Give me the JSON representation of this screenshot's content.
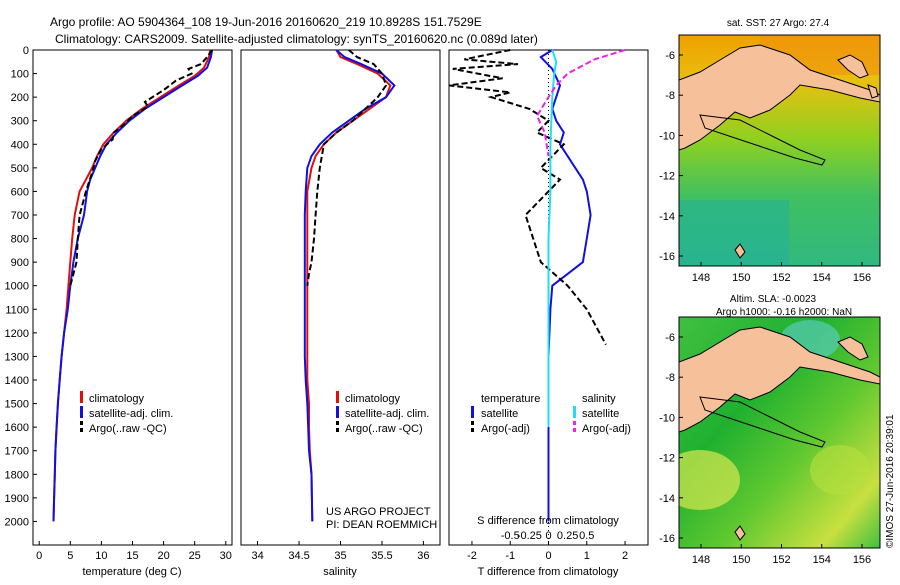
{
  "header": {
    "line1": "Argo profile: AO 5904364_108 19-Jun-2016 20160620_219 10.8928S 151.7529E",
    "line2": "Climatology: CARS2009. Satellite-adjusted climatology: synTS_20160620.nc (0.089d later)"
  },
  "colors": {
    "climatology": "#e01010",
    "satellite": "#1010e0",
    "argo": "#000000",
    "sat_salinity": "#20e0f0",
    "argo_salinity": "#f020f0",
    "land": "#f5c09a"
  },
  "chart_data": [
    {
      "type": "line",
      "id": "temperature",
      "xlabel": "temperature (deg C)",
      "xlim": [
        -1,
        31
      ],
      "xticks": [
        0,
        5,
        10,
        15,
        20,
        25,
        30
      ],
      "ylim": [
        2100,
        0
      ],
      "yticks": [
        0,
        100,
        200,
        300,
        400,
        500,
        600,
        700,
        800,
        900,
        1000,
        1100,
        1200,
        1300,
        1400,
        1500,
        1600,
        1700,
        1800,
        1900,
        2000
      ],
      "legend": [
        "climatology",
        "satellite-adj. clim.",
        "Argo(..raw -QC)"
      ],
      "series": [
        {
          "name": "climatology",
          "x": [
            27.5,
            27.3,
            26.5,
            25,
            22.5,
            19.5,
            16.5,
            14,
            12,
            10.3,
            9.3,
            8.5,
            7.5,
            6.5,
            5.7,
            5.3,
            5,
            4.7,
            4.4,
            4,
            3.6,
            3.3,
            3,
            2.8,
            2.6,
            2.5,
            2.4,
            2.3
          ],
          "y": [
            0,
            30,
            75,
            110,
            150,
            200,
            250,
            300,
            350,
            400,
            450,
            500,
            550,
            600,
            700,
            800,
            900,
            1000,
            1100,
            1200,
            1300,
            1400,
            1500,
            1600,
            1700,
            1800,
            1900,
            2000
          ]
        },
        {
          "name": "satellite-adj. clim.",
          "x": [
            27.8,
            27.6,
            27,
            25.5,
            23,
            20,
            17,
            14.5,
            12.5,
            10.8,
            9.8,
            9,
            8.2,
            7.7,
            7.2,
            6.2,
            5.5,
            5,
            4.6,
            4,
            3.6,
            3.3,
            3,
            2.8,
            2.6,
            2.5,
            2.4,
            2.3
          ],
          "y": [
            0,
            30,
            75,
            110,
            150,
            200,
            250,
            300,
            350,
            400,
            450,
            500,
            550,
            600,
            700,
            800,
            900,
            1000,
            1100,
            1200,
            1300,
            1400,
            1500,
            1600,
            1700,
            1800,
            1900,
            2000
          ]
        },
        {
          "name": "Argo(..raw -QC)",
          "x": [
            27.8,
            27,
            26,
            24,
            24.5,
            22,
            20,
            17,
            17.5,
            15,
            13.5,
            12,
            11.8,
            10,
            9,
            8.5,
            7.5,
            7,
            6.5,
            6.2,
            6,
            5.5,
            5
          ],
          "y": [
            0,
            30,
            60,
            80,
            100,
            130,
            170,
            220,
            240,
            280,
            320,
            350,
            380,
            420,
            470,
            520,
            600,
            650,
            700,
            800,
            900,
            950,
            1000
          ]
        }
      ]
    },
    {
      "type": "line",
      "id": "salinity",
      "xlabel": "salinity",
      "xlim": [
        33.8,
        36.2
      ],
      "xticks": [
        34,
        34.5,
        35,
        35.5,
        36
      ],
      "ylim": [
        2100,
        0
      ],
      "legend": [
        "climatology",
        "satellite-adj. clim.",
        "Argo(..raw -QC)"
      ],
      "series": [
        {
          "name": "climatology",
          "x": [
            34.95,
            35,
            35.2,
            35.45,
            35.6,
            35.55,
            35.35,
            35.15,
            34.95,
            34.8,
            34.7,
            34.65,
            34.6,
            34.6,
            34.6,
            34.6,
            34.6,
            34.6,
            34.6,
            34.6,
            34.6,
            34.62,
            34.62,
            34.63,
            34.65,
            34.66
          ],
          "y": [
            0,
            30,
            60,
            100,
            150,
            200,
            250,
            300,
            350,
            400,
            450,
            500,
            600,
            700,
            800,
            900,
            1000,
            1100,
            1200,
            1300,
            1400,
            1500,
            1600,
            1700,
            1800,
            2000
          ]
        },
        {
          "name": "satellite-adj. clim.",
          "x": [
            34.95,
            35.05,
            35.25,
            35.5,
            35.65,
            35.55,
            35.3,
            35.1,
            34.9,
            34.75,
            34.65,
            34.6,
            34.58,
            34.57,
            34.57,
            34.57,
            34.57,
            34.57,
            34.57,
            34.57,
            34.58,
            34.6,
            34.61,
            34.62,
            34.65,
            34.66
          ],
          "y": [
            0,
            30,
            60,
            100,
            150,
            200,
            250,
            300,
            350,
            400,
            450,
            500,
            600,
            700,
            800,
            900,
            1000,
            1100,
            1200,
            1300,
            1400,
            1500,
            1600,
            1700,
            1800,
            2000
          ]
        },
        {
          "name": "Argo(..raw -QC)",
          "x": [
            35.1,
            35.2,
            35.4,
            35.5,
            35.55,
            35.45,
            35.3,
            35.15,
            34.95,
            34.8,
            34.75,
            34.72,
            34.7,
            34.68,
            34.65,
            34.62,
            34.6
          ],
          "y": [
            0,
            30,
            60,
            100,
            150,
            200,
            250,
            300,
            350,
            400,
            500,
            600,
            700,
            800,
            900,
            950,
            1000
          ]
        }
      ]
    },
    {
      "type": "line",
      "id": "difference",
      "xlabel": "T difference from climatology",
      "xlabel_top": "S difference from climatology",
      "xlim": [
        -2.6,
        2.6
      ],
      "xticks_T": [
        -2,
        -1,
        0,
        1,
        2
      ],
      "xticks_S": [
        "-0.5",
        "-0.25",
        "0",
        "0.25",
        "0.5"
      ],
      "ylim": [
        2100,
        0
      ],
      "legend": {
        "temperature_header": "temperature",
        "salinity_header": "salinity",
        "items": [
          "satellite",
          "Argo(-adj)",
          "satellite",
          "Argo(-adj)"
        ]
      },
      "series": [
        {
          "name": "T satellite",
          "x": [
            0.1,
            -0.2,
            0.1,
            0.3,
            0.2,
            0.1,
            0.2,
            0.4,
            0.3,
            0.5,
            0.7,
            0.9,
            1.0,
            1.1,
            1.0,
            0.9,
            0.5,
            0.1,
            0.05,
            0,
            0,
            0,
            0,
            0
          ],
          "y": [
            0,
            30,
            80,
            150,
            200,
            250,
            300,
            350,
            400,
            450,
            500,
            550,
            600,
            700,
            800,
            900,
            950,
            1000,
            1100,
            1300,
            1500,
            1700,
            1900,
            2000
          ]
        },
        {
          "name": "T Argo(-adj)",
          "x": [
            -1.0,
            -2.2,
            -0.8,
            -2.5,
            -1.2,
            -2.6,
            -1.0,
            -1.5,
            -0.5,
            0,
            -0.3,
            0.4,
            0.1,
            -0.2,
            0.3,
            -0.6,
            -0.4,
            -0.2,
            0.5,
            1.0,
            1.5
          ],
          "y": [
            0,
            40,
            60,
            80,
            120,
            150,
            180,
            200,
            250,
            300,
            350,
            400,
            450,
            500,
            550,
            700,
            800,
            900,
            1000,
            1100,
            1250
          ]
        },
        {
          "name": "S satellite",
          "x": [
            0.1,
            0.2,
            0.15,
            0.1,
            0.05,
            0.05,
            0.0,
            0.0,
            0.0,
            0.0,
            0.0
          ],
          "y": [
            0,
            50,
            100,
            200,
            400,
            600,
            800,
            1000,
            1200,
            1400,
            1600
          ]
        },
        {
          "name": "S Argo(-adj)",
          "x": [
            2.0,
            1.2,
            0.5,
            0.2,
            0.0,
            -0.3,
            -0.1,
            0.0
          ],
          "y": [
            0,
            40,
            100,
            150,
            200,
            280,
            350,
            450
          ]
        }
      ],
      "label1": "US ARGO PROJECT",
      "label2": "PI: DEAN ROEMMICH"
    }
  ],
  "maps": [
    {
      "id": "sst-map",
      "title": "sat. SST: 27 Argo: 27.4",
      "yticks": [
        "-6",
        "-8",
        "-10",
        "-12",
        "-14",
        "-16"
      ],
      "xticks": [
        "148",
        "150",
        "152",
        "154",
        "156"
      ]
    },
    {
      "id": "sla-map",
      "title1": "Altim. SLA: -0.0023",
      "title2": "Argo h1000: -0.16 h2000: NaN",
      "yticks": [
        "-6",
        "-8",
        "-10",
        "-12",
        "-14",
        "-16"
      ],
      "xticks": [
        "148",
        "150",
        "152",
        "154",
        "156"
      ]
    }
  ],
  "footer": {
    "credit": "©IMOS 27-Jun-2016 20:39:01"
  }
}
